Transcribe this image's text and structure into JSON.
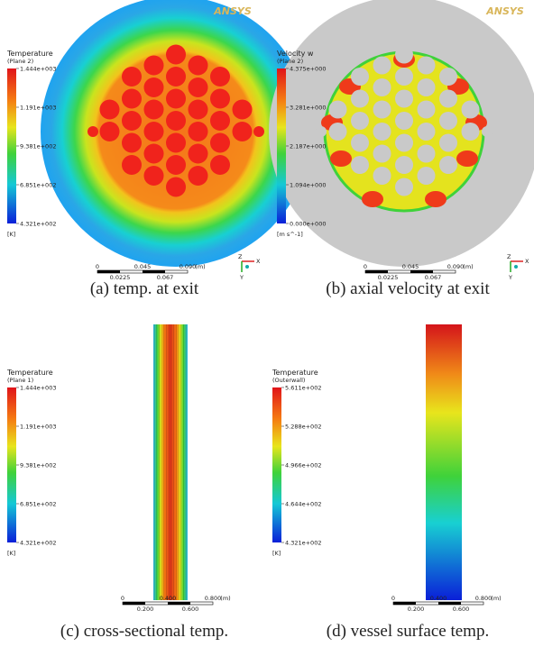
{
  "panels": [
    {
      "caption": "(a) temp. at exit",
      "logo": "ANSYS",
      "legend": {
        "title": "Temperature",
        "subtitle": "(Plane 2)",
        "ticks": [
          "1.444e+003",
          "1.191e+003",
          "9.381e+002",
          "6.851e+002",
          "4.321e+002"
        ],
        "unit": "[K]"
      },
      "scale": {
        "top": [
          "0",
          "0.045",
          "0.090",
          "(m)"
        ],
        "bottom": [
          "0.0225",
          "0.067"
        ]
      },
      "axes": [
        "Z",
        "X",
        "Y"
      ]
    },
    {
      "caption": "(b) axial velocity at exit",
      "logo": "ANSYS",
      "legend": {
        "title": "Velocity  w",
        "subtitle": "(Plane 2)",
        "ticks": [
          "4.375e+000",
          "3.281e+000",
          "2.187e+000",
          "1.094e+000",
          "0.000e+000"
        ],
        "unit": "[m s^-1]"
      },
      "scale": {
        "top": [
          "0",
          "0.045",
          "0.090",
          "(m)"
        ],
        "bottom": [
          "0.0225",
          "0.067"
        ]
      },
      "axes": [
        "Z",
        "X",
        "Y"
      ]
    },
    {
      "caption": "(c) cross-sectional temp.",
      "legend": {
        "title": "Temperature",
        "subtitle": "(Plane 1)",
        "ticks": [
          "1.444e+003",
          "1.191e+003",
          "9.381e+002",
          "6.851e+002",
          "4.321e+002"
        ],
        "unit": "[K]"
      },
      "scale": {
        "top": [
          "0",
          "0.400",
          "0.800",
          "(m)"
        ],
        "bottom": [
          "0.200",
          "0.600"
        ]
      }
    },
    {
      "caption": "(d) vessel surface temp.",
      "legend": {
        "title": "Temperature",
        "subtitle": "(Outerwall)",
        "ticks": [
          "5.611e+002",
          "5.288e+002",
          "4.966e+002",
          "4.644e+002",
          "4.321e+002"
        ],
        "unit": "[K]"
      },
      "scale": {
        "top": [
          "0",
          "0.400",
          "0.800",
          "(m)"
        ],
        "bottom": [
          "0.200",
          "0.600"
        ]
      }
    }
  ]
}
